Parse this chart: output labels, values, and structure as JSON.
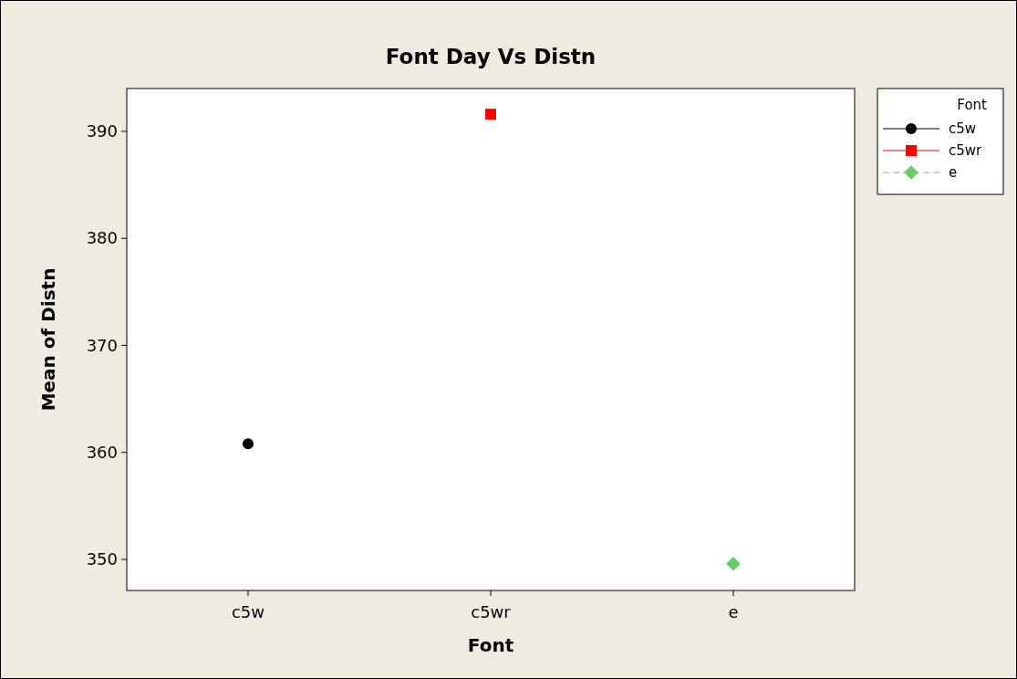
{
  "chart_data": {
    "type": "line",
    "title": "Font Day Vs Distn",
    "xlabel": "Font",
    "ylabel": "Mean of Distn",
    "legend_title": "Font",
    "categories": [
      "c5w",
      "c5wr",
      "e"
    ],
    "series": [
      {
        "name": "c5w",
        "color": "#000000",
        "values": [
          360.8,
          null,
          null
        ],
        "marker": "circle",
        "line_style": "solid"
      },
      {
        "name": "c5wr",
        "color": "#ff0000",
        "values": [
          null,
          391.6,
          null
        ],
        "marker": "square",
        "line_style": "solid"
      },
      {
        "name": "e",
        "color": "#66cc66",
        "values": [
          null,
          null,
          349.6
        ],
        "marker": "diamond",
        "line_style": "dashed"
      }
    ],
    "ylim": [
      347.1,
      394.0
    ],
    "yticks": [
      350,
      360,
      370,
      380,
      390
    ],
    "legend": "top right"
  }
}
